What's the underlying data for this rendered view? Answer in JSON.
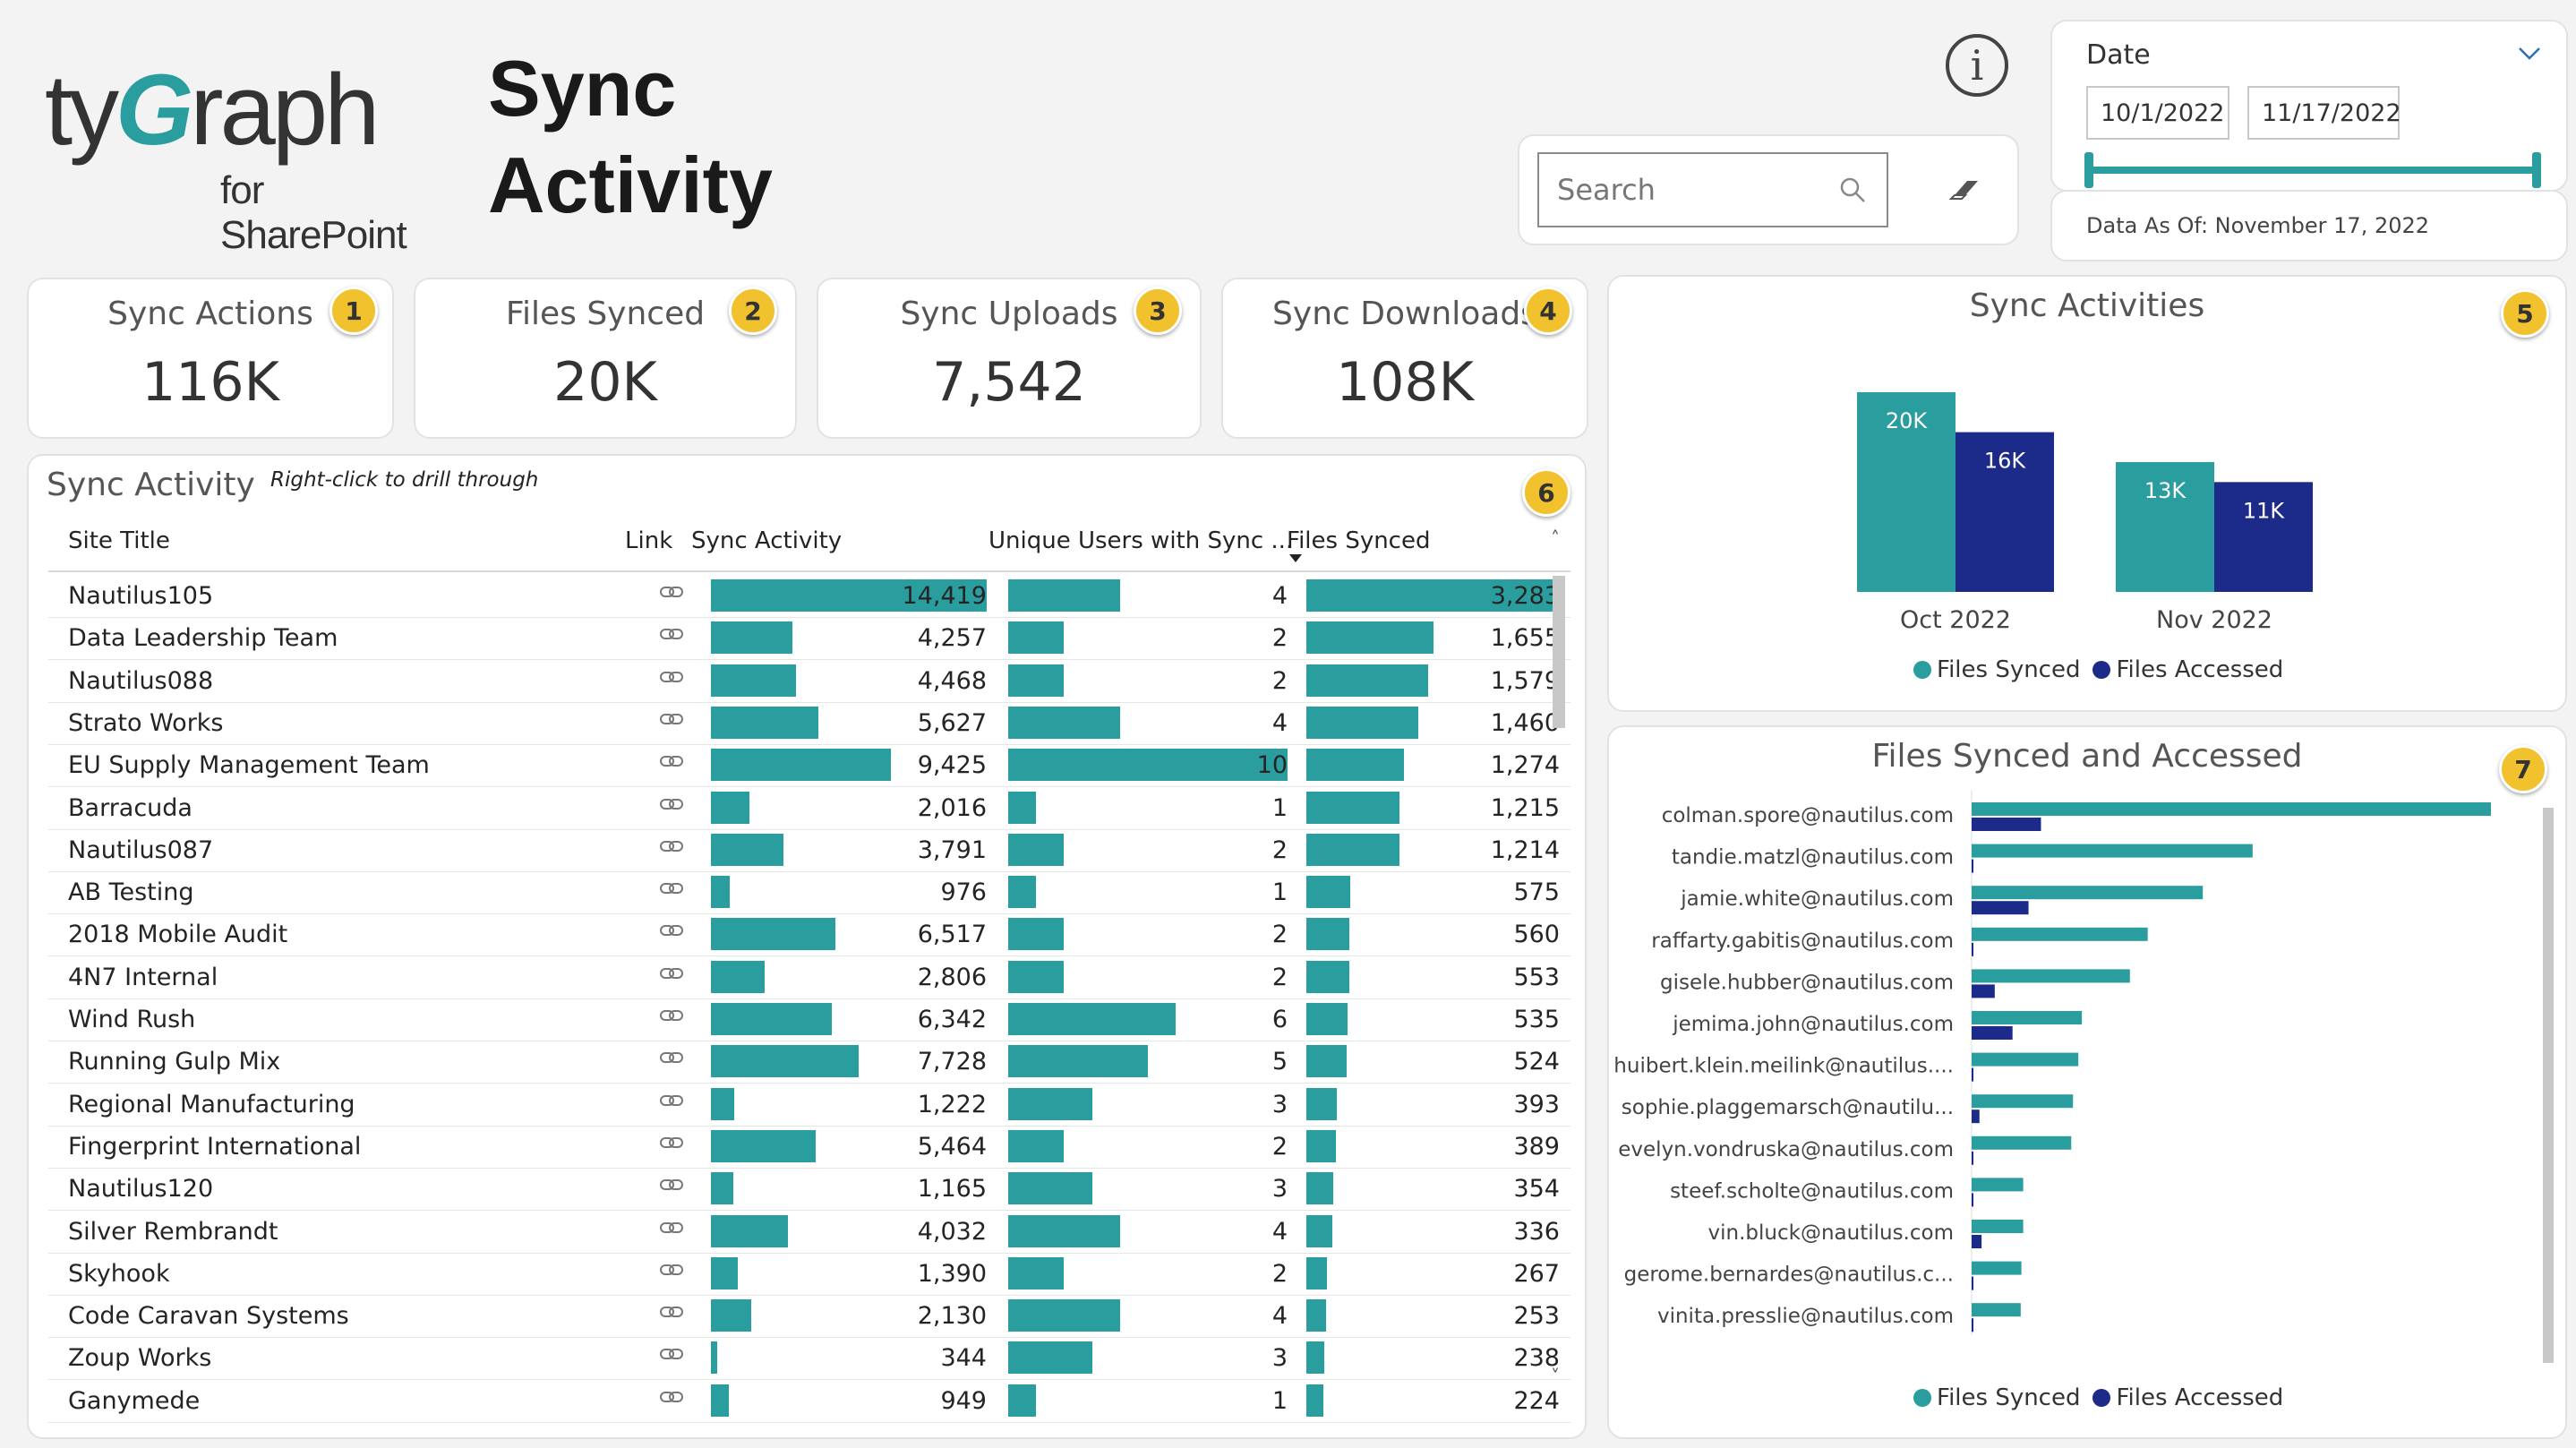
{
  "header": {
    "logo": {
      "ty": "ty",
      "g": "G",
      "raph": "raph",
      "sub": "for SharePoint"
    },
    "title": "Sync Activity",
    "info_icon": "info-icon"
  },
  "search": {
    "placeholder": "Search",
    "icon": "search-icon",
    "clear_icon": "eraser-icon"
  },
  "date_filter": {
    "label": "Date",
    "start": "10/1/2022",
    "end": "11/17/2022",
    "slider_range": [
      0,
      1
    ]
  },
  "data_as_of": "Data As Of: November 17, 2022",
  "colors": {
    "teal": "#2a9d9f",
    "navy": "#1c2a8a",
    "badge": "#f2c12e"
  },
  "kpis": [
    {
      "label": "Sync Actions",
      "value": "116K",
      "badge": "1"
    },
    {
      "label": "Files Synced",
      "value": "20K",
      "badge": "2"
    },
    {
      "label": "Sync Uploads",
      "value": "7,542",
      "badge": "3"
    },
    {
      "label": "Sync Downloads",
      "value": "108K",
      "badge": "4"
    }
  ],
  "table": {
    "title": "Sync Activity",
    "hint": "Right-click to drill through",
    "badge": "6",
    "columns": [
      "Site Title",
      "Link",
      "Sync Activity",
      "Unique Users with Sync ...",
      "Files Synced"
    ],
    "sort_column": "Files Synced",
    "rows": [
      {
        "title": "Nautilus105",
        "activity": "14,419",
        "users": "4",
        "files": "3,283"
      },
      {
        "title": "Data Leadership Team",
        "activity": "4,257",
        "users": "2",
        "files": "1,655"
      },
      {
        "title": "Nautilus088",
        "activity": "4,468",
        "users": "2",
        "files": "1,579"
      },
      {
        "title": "Strato Works",
        "activity": "5,627",
        "users": "4",
        "files": "1,460"
      },
      {
        "title": "EU Supply Management Team",
        "activity": "9,425",
        "users": "10",
        "files": "1,274"
      },
      {
        "title": "Barracuda",
        "activity": "2,016",
        "users": "1",
        "files": "1,215"
      },
      {
        "title": "Nautilus087",
        "activity": "3,791",
        "users": "2",
        "files": "1,214"
      },
      {
        "title": "AB Testing",
        "activity": "976",
        "users": "1",
        "files": "575"
      },
      {
        "title": "2018 Mobile Audit",
        "activity": "6,517",
        "users": "2",
        "files": "560"
      },
      {
        "title": "4N7 Internal",
        "activity": "2,806",
        "users": "2",
        "files": "553"
      },
      {
        "title": "Wind Rush",
        "activity": "6,342",
        "users": "6",
        "files": "535"
      },
      {
        "title": "Running Gulp Mix",
        "activity": "7,728",
        "users": "5",
        "files": "524"
      },
      {
        "title": "Regional Manufacturing",
        "activity": "1,222",
        "users": "3",
        "files": "393"
      },
      {
        "title": "Fingerprint International",
        "activity": "5,464",
        "users": "2",
        "files": "389"
      },
      {
        "title": "Nautilus120",
        "activity": "1,165",
        "users": "3",
        "files": "354"
      },
      {
        "title": "Silver Rembrandt",
        "activity": "4,032",
        "users": "4",
        "files": "336"
      },
      {
        "title": "Skyhook",
        "activity": "1,390",
        "users": "2",
        "files": "267"
      },
      {
        "title": "Code Caravan Systems",
        "activity": "2,130",
        "users": "4",
        "files": "253"
      },
      {
        "title": "Zoup Works",
        "activity": "344",
        "users": "3",
        "files": "238"
      },
      {
        "title": "Ganymede",
        "activity": "949",
        "users": "1",
        "files": "224"
      }
    ]
  },
  "chart_data": [
    {
      "type": "bar",
      "title": "Sync Activities",
      "badge": "5",
      "categories": [
        "Oct 2022",
        "Nov 2022"
      ],
      "series": [
        {
          "name": "Files Synced",
          "values": [
            20000,
            13000
          ],
          "labels": [
            "20K",
            "13K"
          ],
          "color": "#2a9d9f"
        },
        {
          "name": "Files Accessed",
          "values": [
            16000,
            11000
          ],
          "labels": [
            "16K",
            "11K"
          ],
          "color": "#1c2a8a"
        }
      ],
      "legend": "bottom-center"
    },
    {
      "type": "bar",
      "orientation": "horizontal",
      "title": "Files Synced and Accessed",
      "badge": "7",
      "categories": [
        "colman.spore@nautilus.com",
        "tandie.matzl@nautilus.com",
        "jamie.white@nautilus.com",
        "raffarty.gabitis@nautilus.com",
        "gisele.hubber@nautilus.com",
        "jemima.john@nautilus.com",
        "huibert.klein.meilink@nautilus....",
        "sophie.plaggemarsch@nautilu...",
        "evelyn.vondruska@nautilus.com",
        "steef.scholte@nautilus.com",
        "vin.bluck@nautilus.com",
        "gerome.bernardes@nautilus.c...",
        "vinita.presslie@nautilus.com"
      ],
      "series": [
        {
          "name": "Files Synced",
          "values": [
            1460,
            790,
            650,
            495,
            445,
            310,
            300,
            285,
            280,
            145,
            145,
            140,
            138
          ],
          "color": "#2a9d9f"
        },
        {
          "name": "Files Accessed",
          "values": [
            195,
            5,
            160,
            5,
            65,
            115,
            3,
            22,
            3,
            3,
            28,
            3,
            3
          ],
          "color": "#1c2a8a"
        }
      ],
      "legend": "bottom-center"
    }
  ]
}
